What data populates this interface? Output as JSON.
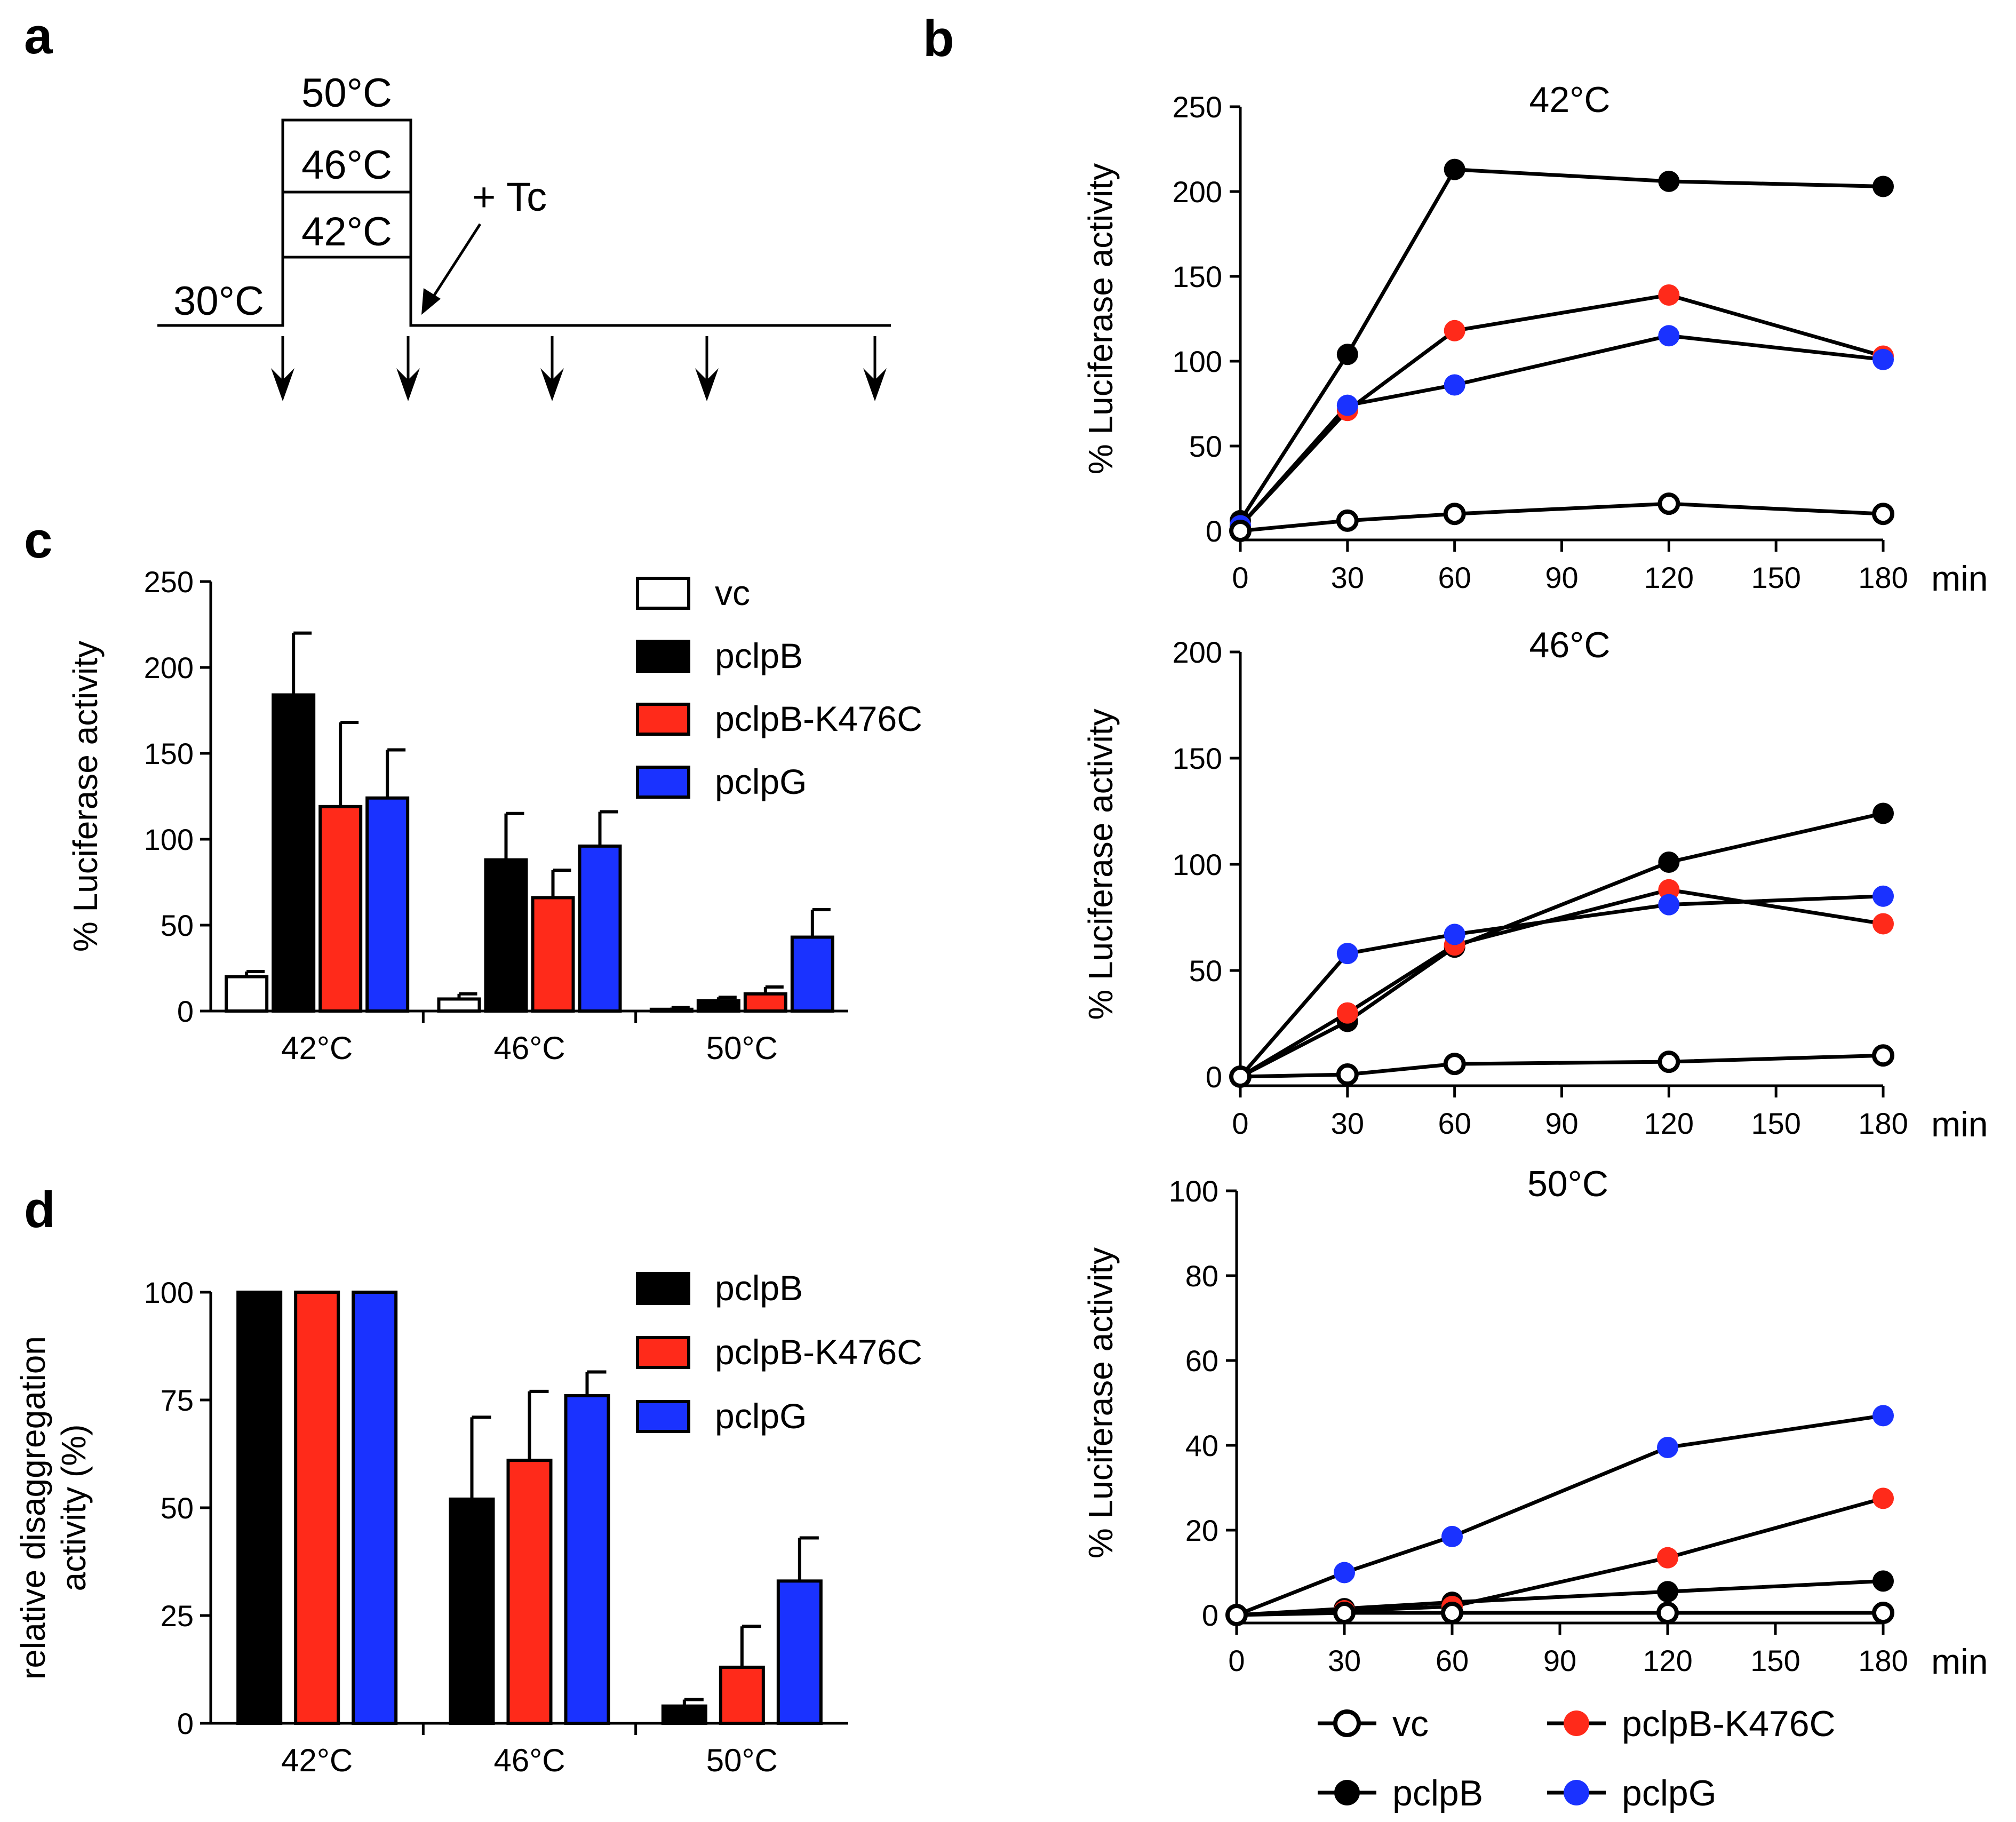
{
  "panel_labels": {
    "a": "a",
    "b": "b",
    "c": "c",
    "d": "d"
  },
  "colors": {
    "vc": "#ffffff",
    "pclpB": "#000000",
    "pclpB-K476C": "#ff2a1a",
    "pclpG": "#1a32ff"
  },
  "schematic": {
    "temps": [
      "50°C",
      "46°C",
      "42°C"
    ],
    "baseline": "30°C",
    "addition": "+ Tc",
    "sample_arrow_count": 5
  },
  "chart_data": [
    {
      "id": "c",
      "type": "bar",
      "title": "",
      "xlabel": "",
      "ylabel": "% Luciferase activity",
      "ylim": [
        0,
        250
      ],
      "yticks": [
        0,
        50,
        100,
        150,
        200,
        250
      ],
      "categories": [
        "42°C",
        "46°C",
        "50°C"
      ],
      "legend": [
        "vc",
        "pclpB",
        "pclpB-K476C",
        "pclpG"
      ],
      "legend_position": "top-right",
      "series": [
        {
          "name": "vc",
          "values": [
            20,
            7,
            1
          ],
          "errors": [
            3,
            3,
            1
          ]
        },
        {
          "name": "pclpB",
          "values": [
            184,
            88,
            6
          ],
          "errors": [
            36,
            27,
            2
          ]
        },
        {
          "name": "pclpB-K476C",
          "values": [
            119,
            66,
            10
          ],
          "errors": [
            49,
            16,
            4
          ]
        },
        {
          "name": "pclpG",
          "values": [
            124,
            96,
            43
          ],
          "errors": [
            28,
            20,
            16
          ]
        }
      ]
    },
    {
      "id": "d",
      "type": "bar",
      "title": "",
      "xlabel": "",
      "ylabel": "relative disaggregation activity (%)",
      "ylabel_lines": [
        "relative disaggregation",
        "activity (%)"
      ],
      "ylim": [
        0,
        100
      ],
      "yticks": [
        0,
        25,
        50,
        75,
        100
      ],
      "categories": [
        "42°C",
        "46°C",
        "50°C"
      ],
      "legend": [
        "pclpB",
        "pclpB-K476C",
        "pclpG"
      ],
      "legend_position": "top-right",
      "series": [
        {
          "name": "pclpB",
          "values": [
            100,
            52,
            4
          ],
          "errors": [
            0,
            19,
            1.5
          ]
        },
        {
          "name": "pclpB-K476C",
          "values": [
            100,
            61,
            13
          ],
          "errors": [
            0,
            16,
            9.5
          ]
        },
        {
          "name": "pclpG",
          "values": [
            100,
            76,
            33
          ],
          "errors": [
            0,
            5.5,
            10
          ]
        }
      ]
    },
    {
      "id": "b1",
      "type": "line",
      "title": "42°C",
      "xlabel": "min",
      "ylabel": "% Luciferase activity",
      "x": [
        0,
        30,
        60,
        120,
        180
      ],
      "xticks": [
        0,
        30,
        60,
        90,
        120,
        150,
        180
      ],
      "ylim": [
        0,
        250
      ],
      "yticks": [
        0,
        50,
        100,
        150,
        200,
        250
      ],
      "series": [
        {
          "name": "pclpB",
          "values": [
            6,
            104,
            213,
            206,
            203
          ]
        },
        {
          "name": "pclpB-K476C",
          "values": [
            3,
            71,
            118,
            139,
            103
          ]
        },
        {
          "name": "pclpG",
          "values": [
            3,
            74,
            86,
            115,
            101
          ]
        },
        {
          "name": "vc",
          "values": [
            0,
            6,
            10,
            16,
            10
          ]
        }
      ]
    },
    {
      "id": "b2",
      "type": "line",
      "title": "46°C",
      "xlabel": "min",
      "ylabel": "% Luciferase activity",
      "x": [
        0,
        30,
        60,
        120,
        180
      ],
      "xticks": [
        0,
        30,
        60,
        90,
        120,
        150,
        180
      ],
      "ylim": [
        0,
        200
      ],
      "yticks": [
        0,
        50,
        100,
        150,
        200
      ],
      "series": [
        {
          "name": "pclpB",
          "values": [
            0,
            26,
            61,
            101,
            124
          ]
        },
        {
          "name": "pclpB-K476C",
          "values": [
            0,
            30,
            62,
            88,
            72
          ]
        },
        {
          "name": "pclpG",
          "values": [
            0,
            58,
            67,
            81,
            85
          ]
        },
        {
          "name": "vc",
          "values": [
            0,
            1,
            6,
            7,
            10
          ]
        }
      ]
    },
    {
      "id": "b3",
      "type": "line",
      "title": "50°C",
      "xlabel": "min",
      "ylabel": "% Luciferase activity",
      "x": [
        0,
        30,
        60,
        120,
        180
      ],
      "xticks": [
        0,
        30,
        60,
        90,
        120,
        150,
        180
      ],
      "ylim": [
        0,
        100
      ],
      "yticks": [
        0,
        20,
        40,
        60,
        80,
        100
      ],
      "series": [
        {
          "name": "pclpB",
          "values": [
            0,
            1.5,
            3,
            5.5,
            8
          ]
        },
        {
          "name": "pclpB-K476C",
          "values": [
            0,
            1,
            2,
            13.5,
            27.5
          ]
        },
        {
          "name": "pclpG",
          "values": [
            0,
            10,
            18.5,
            39.5,
            47
          ]
        },
        {
          "name": "vc",
          "values": [
            0,
            0.5,
            0.5,
            0.5,
            0.5
          ]
        }
      ]
    }
  ],
  "line_legend": [
    "vc",
    "pclpB-K476C",
    "pclpB",
    "pclpG"
  ]
}
